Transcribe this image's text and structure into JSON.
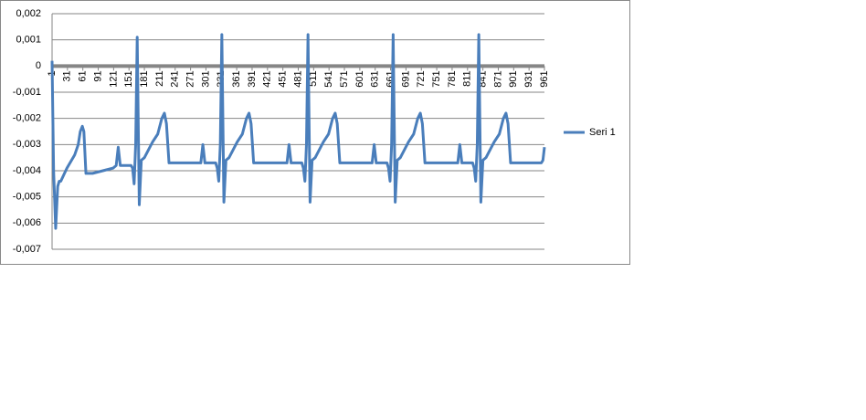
{
  "chart_data": {
    "type": "line",
    "x": [
      1,
      4,
      8,
      12,
      15,
      18,
      30,
      45,
      52,
      56,
      60,
      63,
      67,
      80,
      100,
      120,
      126,
      130,
      134,
      155,
      158,
      161,
      164,
      167,
      171,
      175,
      181,
      197,
      207,
      215,
      220,
      224,
      229,
      291,
      295,
      299,
      320,
      323,
      326,
      329,
      332,
      336,
      340,
      346,
      362,
      372,
      380,
      385,
      389,
      394,
      459,
      463,
      467,
      488,
      491,
      494,
      497,
      500,
      504,
      508,
      514,
      530,
      540,
      548,
      553,
      557,
      562,
      625,
      629,
      633,
      654,
      657,
      660,
      663,
      666,
      670,
      674,
      680,
      696,
      706,
      714,
      719,
      723,
      728,
      792,
      796,
      800,
      821,
      824,
      827,
      830,
      833,
      837,
      841,
      847,
      863,
      873,
      881,
      886,
      890,
      895,
      930,
      955,
      958,
      961
    ],
    "series": [
      {
        "name": "Seri 1",
        "color": "#4a7ebb",
        "values": [
          0.0002,
          -0.004,
          -0.0062,
          -0.0046,
          -0.0044,
          -0.0044,
          -0.0039,
          -0.0034,
          -0.003,
          -0.0025,
          -0.0023,
          -0.0025,
          -0.0041,
          -0.0041,
          -0.004,
          -0.0039,
          -0.0038,
          -0.0031,
          -0.0038,
          -0.0038,
          -0.0039,
          -0.0045,
          -0.003,
          0.0011,
          -0.0053,
          -0.0036,
          -0.0035,
          -0.0029,
          -0.0026,
          -0.002,
          -0.0018,
          -0.0022,
          -0.0037,
          -0.0037,
          -0.003,
          -0.0037,
          -0.0037,
          -0.0039,
          -0.0044,
          -0.003,
          0.0012,
          -0.0052,
          -0.0036,
          -0.0035,
          -0.0029,
          -0.0026,
          -0.002,
          -0.0018,
          -0.0022,
          -0.0037,
          -0.0037,
          -0.003,
          -0.0037,
          -0.0037,
          -0.0039,
          -0.0044,
          -0.003,
          0.0012,
          -0.0052,
          -0.0036,
          -0.0035,
          -0.0029,
          -0.0026,
          -0.002,
          -0.0018,
          -0.0022,
          -0.0037,
          -0.0037,
          -0.003,
          -0.0037,
          -0.0037,
          -0.0039,
          -0.0044,
          -0.003,
          0.0012,
          -0.0052,
          -0.0036,
          -0.0035,
          -0.0029,
          -0.0026,
          -0.002,
          -0.0018,
          -0.0022,
          -0.0037,
          -0.0037,
          -0.003,
          -0.0037,
          -0.0037,
          -0.0039,
          -0.0044,
          -0.003,
          0.0012,
          -0.0052,
          -0.0036,
          -0.0035,
          -0.0029,
          -0.0026,
          -0.002,
          -0.0018,
          -0.0022,
          -0.0037,
          -0.0037,
          -0.0037,
          -0.0036,
          -0.0031
        ]
      }
    ],
    "xlim": [
      1,
      961
    ],
    "xticks": [
      1,
      31,
      61,
      91,
      121,
      151,
      181,
      211,
      241,
      271,
      301,
      331,
      361,
      391,
      421,
      451,
      481,
      511,
      541,
      571,
      601,
      631,
      661,
      691,
      721,
      751,
      781,
      811,
      841,
      871,
      901,
      931,
      961
    ],
    "ylim": [
      -0.007,
      0.002
    ],
    "yticks": [
      {
        "value": 0.002,
        "label": "0,002"
      },
      {
        "value": 0.001,
        "label": "0,001"
      },
      0,
      {
        "value": -0.001,
        "label": "-0,001"
      },
      {
        "value": -0.002,
        "label": "-0,002"
      },
      {
        "value": -0.003,
        "label": "-0,003"
      },
      {
        "value": -0.004,
        "label": "-0,004"
      },
      {
        "value": -0.005,
        "label": "-0,005"
      },
      {
        "value": -0.006,
        "label": "-0,006"
      },
      {
        "value": -0.007,
        "label": "-0,007"
      }
    ],
    "grid": true,
    "legend": "right"
  }
}
